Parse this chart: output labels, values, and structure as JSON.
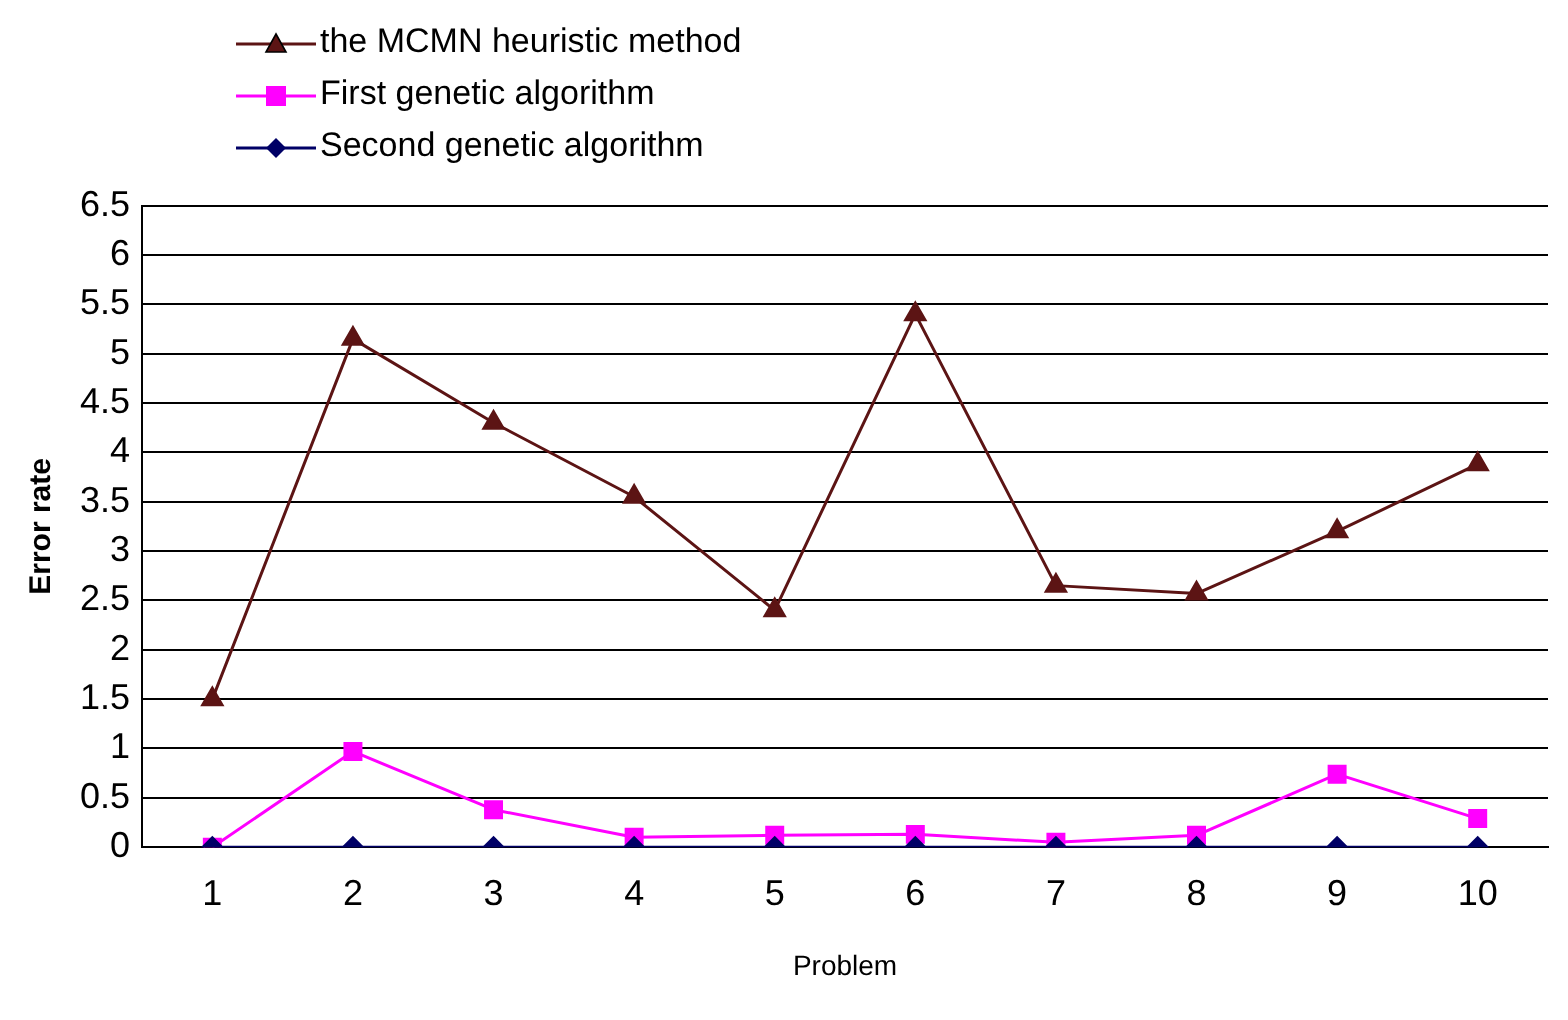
{
  "chart_data": {
    "type": "line",
    "xlabel": "Problem",
    "ylabel": "Error rate",
    "categories": [
      "1",
      "2",
      "3",
      "4",
      "5",
      "6",
      "7",
      "8",
      "9",
      "10"
    ],
    "series": [
      {
        "name": "the MCMN heuristic method",
        "color": "#5c1414",
        "marker": "triangle",
        "values": [
          1.5,
          5.15,
          4.3,
          3.55,
          2.4,
          5.4,
          2.65,
          2.57,
          3.2,
          3.88
        ]
      },
      {
        "name": "First genetic algorithm",
        "color": "#ff00ff",
        "marker": "square",
        "values": [
          0,
          0.97,
          0.38,
          0.1,
          0.12,
          0.13,
          0.05,
          0.12,
          0.74,
          0.29
        ]
      },
      {
        "name": "Second genetic algorithm",
        "color": "#000066",
        "marker": "diamond",
        "values": [
          0,
          0,
          0,
          0,
          0,
          0,
          0,
          0,
          0,
          0
        ]
      }
    ],
    "ylim": [
      0,
      6.5
    ],
    "yticks": [
      0,
      0.5,
      1,
      1.5,
      2,
      2.5,
      3,
      3.5,
      4,
      4.5,
      5,
      5.5,
      6,
      6.5
    ],
    "grid": "y",
    "legend": "top left"
  }
}
